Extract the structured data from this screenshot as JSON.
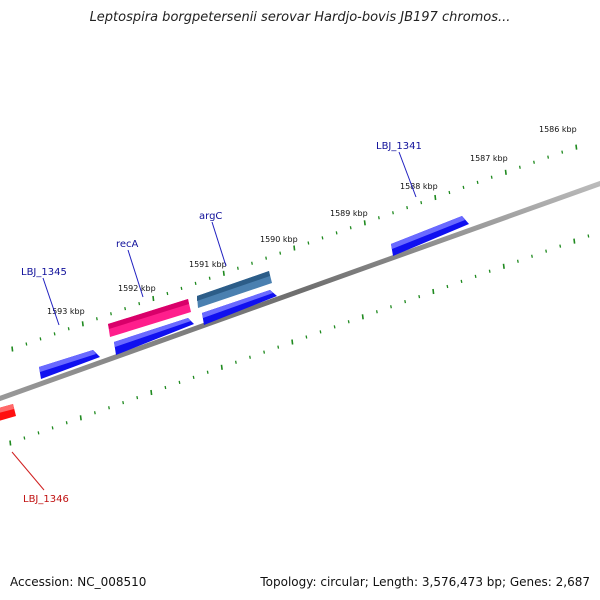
{
  "title": "Leptospira borgpetersenii serovar Hardjo-bovis JB197 chromos...",
  "footer": {
    "accession": "Accession: NC_008510",
    "summary": "Topology: circular; Length: 3,576,473 bp; Genes: 2,687"
  },
  "colors": {
    "backbone": "#7a7a7a",
    "tick": "#1f8a1f",
    "gene_forward": "#1010f0",
    "gene_named_pink": "#ff1e8c",
    "gene_named_steel": "#4a80b0",
    "gene_reverse_red": "#ff1010",
    "label_blue": "#10109a",
    "label_red": "#c01010"
  },
  "scale": {
    "labels": [
      "1586 kbp",
      "1587 kbp",
      "1588 kbp",
      "1589 kbp",
      "1590 kbp",
      "1591 kbp",
      "1592 kbp",
      "1593 kbp"
    ]
  },
  "genes": [
    {
      "name": "LBJ_1341",
      "color": "gene_forward"
    },
    {
      "name": "argC",
      "color": "gene_named_steel"
    },
    {
      "name": "recA",
      "color": "gene_named_pink"
    },
    {
      "name": "LBJ_1345",
      "color": "gene_forward"
    },
    {
      "name": "LBJ_1346",
      "color": "gene_reverse_red"
    }
  ]
}
